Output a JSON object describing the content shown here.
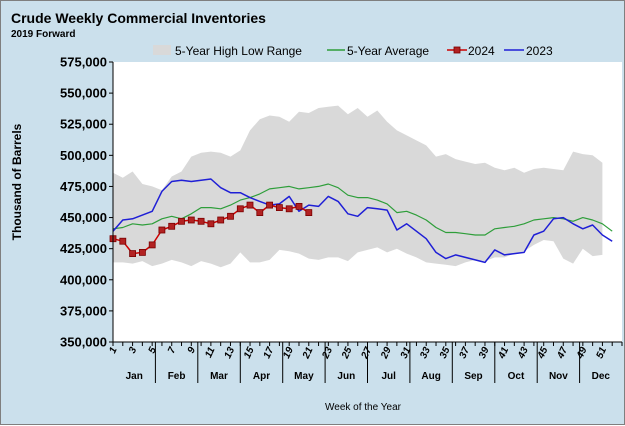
{
  "chart_data": {
    "type": "line",
    "title": "Crude Weekly Commercial  Inventories",
    "subtitle": "2019 Forward",
    "xlabel": "Week of the Year",
    "ylabel": "Thousand of Barrels",
    "ylim": [
      350000,
      575000
    ],
    "xlim": [
      1,
      53
    ],
    "y_ticks": [
      "575,000",
      "550,000",
      "525,000",
      "500,000",
      "475,000",
      "450,000",
      "425,000",
      "400,000",
      "375,000",
      "350,000"
    ],
    "x_ticks": [
      "1",
      "3",
      "5",
      "7",
      "9",
      "11",
      "13",
      "15",
      "17",
      "19",
      "21",
      "23",
      "25",
      "27",
      "29",
      "31",
      "33",
      "35",
      "37",
      "39",
      "41",
      "43",
      "45",
      "47",
      "49",
      "51"
    ],
    "months": [
      "Jan",
      "Feb",
      "Mar",
      "Apr",
      "May",
      "Jun",
      "Jul",
      "Aug",
      "Sep",
      "Oct",
      "Nov",
      "Dec"
    ],
    "legend_position": "top",
    "grid": false,
    "series": [
      {
        "name": "5-Year High Low Range",
        "kind": "band",
        "color": "#d9d9d9",
        "upper": [
          486000,
          482000,
          487000,
          477000,
          475000,
          472000,
          483000,
          487000,
          499000,
          502000,
          503000,
          502000,
          499000,
          504000,
          520000,
          529000,
          532000,
          531000,
          527000,
          535000,
          534000,
          538000,
          539000,
          540000,
          533000,
          538000,
          531000,
          536000,
          527000,
          520000,
          516000,
          512000,
          508000,
          499000,
          501000,
          497000,
          495000,
          493000,
          494000,
          490000,
          488000,
          490000,
          486000,
          489000,
          490000,
          489000,
          488000,
          503000,
          501000,
          500000,
          494000
        ],
        "lower": [
          414000,
          414000,
          413000,
          415000,
          411000,
          413000,
          416000,
          414000,
          411000,
          415000,
          413000,
          410000,
          413000,
          422000,
          414000,
          414000,
          416000,
          424000,
          423000,
          421000,
          417000,
          416000,
          418000,
          418000,
          415000,
          422000,
          424000,
          426000,
          422000,
          425000,
          421000,
          418000,
          414000,
          413000,
          412000,
          411000,
          414000,
          416000,
          415000,
          418000,
          418000,
          421000,
          423000,
          428000,
          432000,
          431000,
          417000,
          413000,
          425000,
          419000,
          420000
        ]
      },
      {
        "name": "5-Year Average",
        "kind": "line",
        "color": "#2e9e3a",
        "x": [
          1,
          2,
          3,
          4,
          5,
          6,
          7,
          8,
          9,
          10,
          11,
          12,
          13,
          14,
          15,
          16,
          17,
          18,
          19,
          20,
          21,
          22,
          23,
          24,
          25,
          26,
          27,
          28,
          29,
          30,
          31,
          32,
          33,
          34,
          35,
          36,
          37,
          38,
          39,
          40,
          41,
          42,
          43,
          44,
          45,
          46,
          47,
          48,
          49,
          50,
          51,
          52
        ],
        "values": [
          441000,
          442000,
          445000,
          444000,
          445000,
          449000,
          451000,
          449000,
          453000,
          458000,
          458000,
          457000,
          460000,
          464000,
          466000,
          469000,
          473000,
          474000,
          475000,
          473000,
          474000,
          475000,
          477000,
          474000,
          468000,
          466000,
          466000,
          464000,
          461000,
          454000,
          455000,
          452000,
          448000,
          442000,
          438000,
          438000,
          437000,
          436000,
          436000,
          441000,
          442000,
          443000,
          445000,
          448000,
          449000,
          450000,
          449000,
          447000,
          450000,
          448000,
          445000,
          439000
        ]
      },
      {
        "name": "2024",
        "kind": "line-markers",
        "color": "#cc0000",
        "marker_color": "#b22222",
        "x": [
          1,
          2,
          3,
          4,
          5,
          6,
          7,
          8,
          9,
          10,
          11,
          12,
          13,
          14,
          15,
          16,
          17,
          18,
          19,
          20,
          21
        ],
        "values": [
          433000,
          431000,
          421000,
          422000,
          428000,
          440000,
          443000,
          447000,
          448000,
          447000,
          445000,
          448000,
          451000,
          457000,
          460000,
          454000,
          460000,
          458000,
          457000,
          459000,
          454000
        ]
      },
      {
        "name": "2023",
        "kind": "line",
        "color": "#1f1fd6",
        "x": [
          1,
          2,
          3,
          4,
          5,
          6,
          7,
          8,
          9,
          10,
          11,
          12,
          13,
          14,
          15,
          16,
          17,
          18,
          19,
          20,
          21,
          22,
          23,
          24,
          25,
          26,
          27,
          28,
          29,
          30,
          31,
          32,
          33,
          34,
          35,
          36,
          37,
          38,
          39,
          40,
          41,
          42,
          43,
          44,
          45,
          46,
          47,
          48,
          49,
          50,
          51,
          52
        ],
        "values": [
          439000,
          448000,
          449000,
          452000,
          455000,
          471000,
          479000,
          480000,
          479000,
          480000,
          481000,
          474000,
          470000,
          470000,
          466000,
          463000,
          460000,
          461000,
          467000,
          455000,
          460000,
          459000,
          467000,
          463000,
          453000,
          451000,
          458000,
          457000,
          456000,
          440000,
          445000,
          439000,
          433000,
          422000,
          417000,
          420000,
          418000,
          416000,
          414000,
          424000,
          420000,
          421000,
          422000,
          436000,
          439000,
          449000,
          450000,
          445000,
          441000,
          444000,
          436000,
          431000
        ]
      }
    ]
  }
}
